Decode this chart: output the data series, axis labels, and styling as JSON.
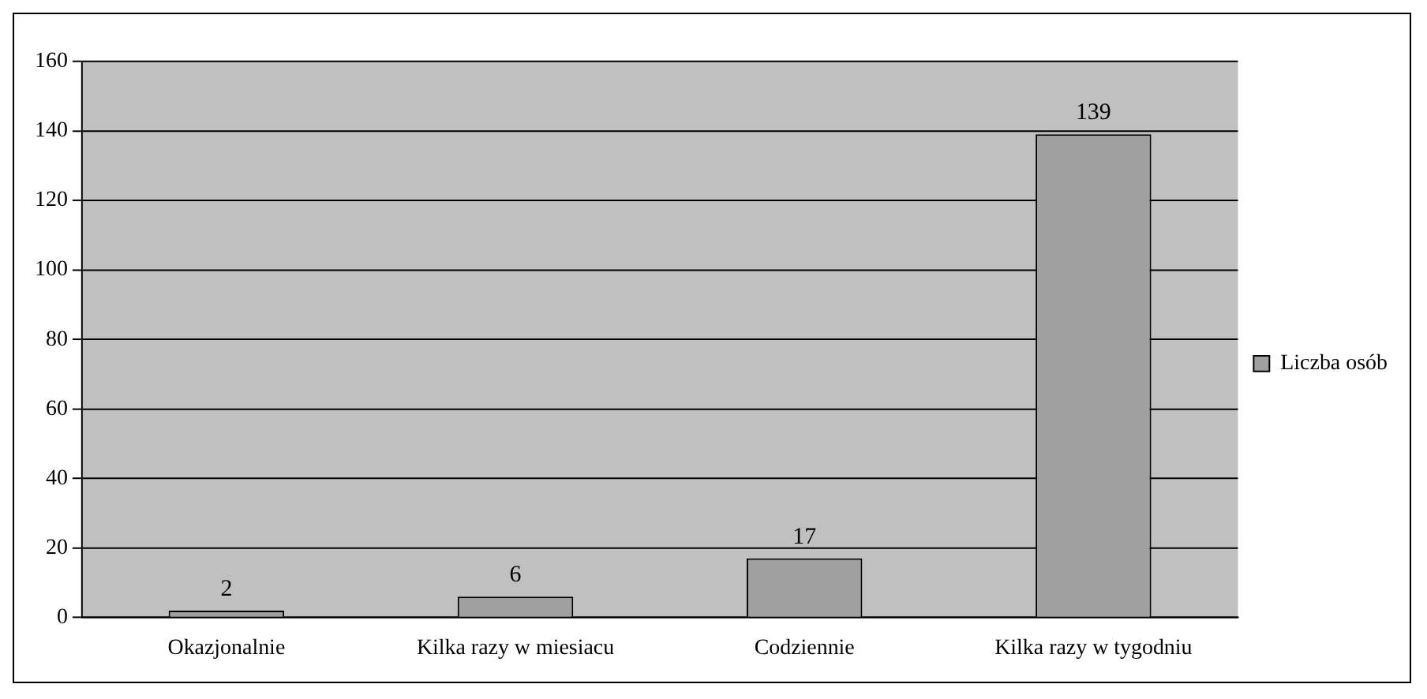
{
  "chart_data": {
    "type": "bar",
    "categories": [
      "Okazjonalnie",
      "Kilka razy w miesiacu",
      "Codziennie",
      "Kilka razy w tygodniu"
    ],
    "series": [
      {
        "name": "Liczba osób",
        "color": "#a0a0a0",
        "values": [
          2,
          6,
          17,
          139
        ]
      }
    ],
    "ylim": [
      0,
      160
    ],
    "yticks": [
      0,
      20,
      40,
      60,
      80,
      100,
      120,
      140,
      160
    ],
    "grid": "y",
    "legend": "right",
    "data_labels": true
  }
}
